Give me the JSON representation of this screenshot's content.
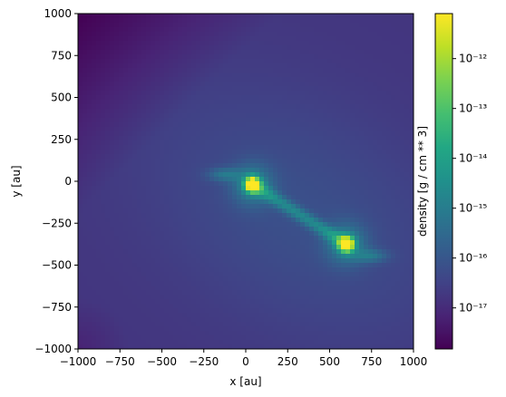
{
  "chart_data": {
    "type": "heatmap",
    "title": "",
    "xlabel": "x [au]",
    "ylabel": "y [au]",
    "xlim": [
      -1000,
      1000
    ],
    "ylim": [
      -1000,
      1000
    ],
    "x_ticks": [
      -1000,
      -750,
      -500,
      -250,
      0,
      250,
      500,
      750,
      1000
    ],
    "y_ticks": [
      -1000,
      -750,
      -500,
      -250,
      0,
      250,
      500,
      750,
      1000
    ],
    "x_tick_labels": [
      "−1000",
      "−750",
      "−500",
      "−250",
      "0",
      "250",
      "500",
      "750",
      "1000"
    ],
    "y_tick_labels": [
      "−1000",
      "−750",
      "−500",
      "−250",
      "0",
      "250",
      "500",
      "750",
      "1000"
    ],
    "colormap": "viridis",
    "grid": false,
    "colorbar": {
      "label": "density [g / cm ** 3]",
      "scale": "log",
      "range": [
        1.5e-18,
        8e-12
      ],
      "ticks": [
        1e-17,
        1e-16,
        1e-15,
        1e-14,
        1e-13,
        1e-12
      ],
      "tick_labels": [
        "10⁻¹⁷",
        "10⁻¹⁶",
        "10⁻¹⁵",
        "10⁻¹⁴",
        "10⁻¹³",
        "10⁻¹²"
      ]
    },
    "features": {
      "sources": [
        {
          "x": 40,
          "y": -20,
          "peak_density": 8e-12
        },
        {
          "x": 600,
          "y": -375,
          "peak_density": 8e-12
        }
      ],
      "bridge": {
        "from": [
          40,
          -20
        ],
        "to": [
          600,
          -375
        ]
      },
      "background_density": 3e-17
    }
  }
}
